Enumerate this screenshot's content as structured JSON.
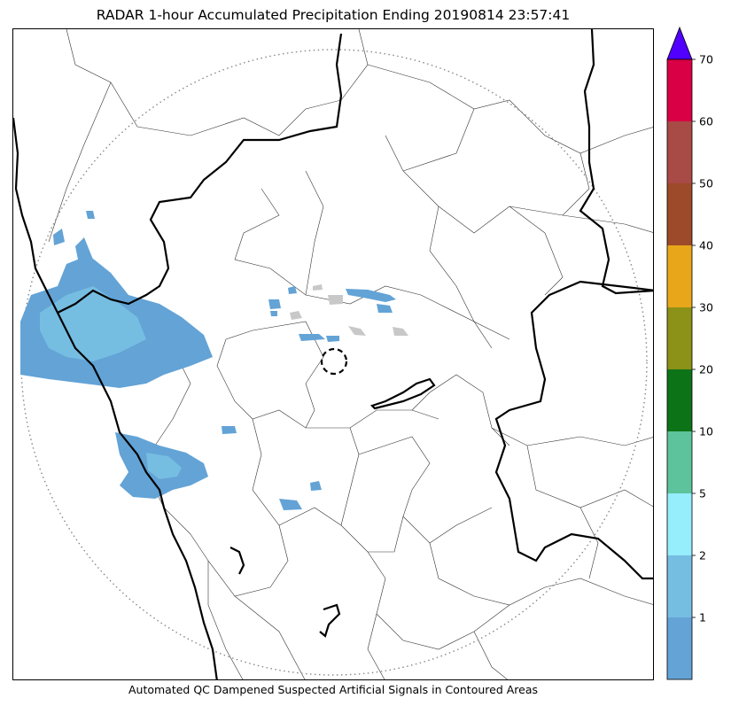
{
  "title": "RADAR 1-hour Accumulated Precipitation Ending 20190814 23:57:41",
  "caption": "Automated QC Dampened Suspected Artificial Signals in Contoured Areas",
  "colorbar": {
    "extend": "max",
    "extend_color": "#5100ff",
    "tick_labels": [
      "1",
      "2",
      "5",
      "10",
      "20",
      "30",
      "40",
      "50",
      "60",
      "70"
    ],
    "bins": [
      {
        "color": "#63a3d6"
      },
      {
        "color": "#76bde2"
      },
      {
        "color": "#96edfc"
      },
      {
        "color": "#5dc39c"
      },
      {
        "color": "#0d7317"
      },
      {
        "color": "#8c9117"
      },
      {
        "color": "#e8a71a"
      },
      {
        "color": "#9c4a29"
      },
      {
        "color": "#a84a45"
      },
      {
        "color": "#d90045"
      }
    ]
  },
  "colors": {
    "light_precip": "#63a3d6",
    "moderate_precip": "#76bde2",
    "qc_dampened": "#c8c8c8",
    "coastline": "#000000",
    "range_ring": "#888888"
  }
}
